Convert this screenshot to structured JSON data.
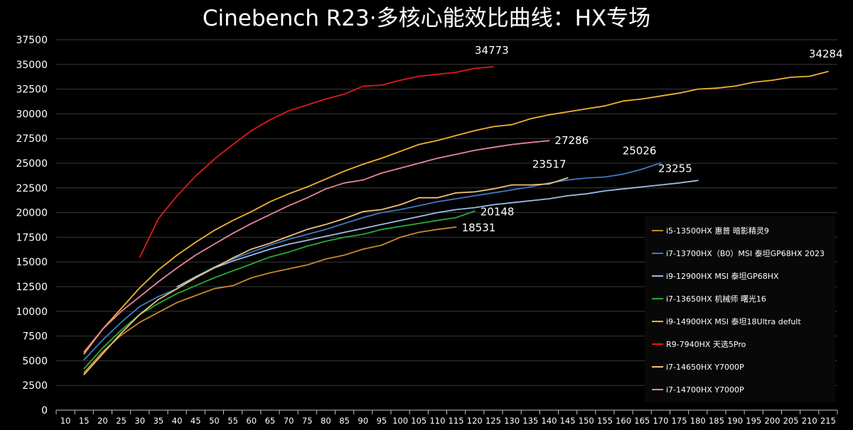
{
  "chart_data": {
    "type": "line",
    "title": "Cinebench R23·多核心能效比曲线：HX专场",
    "xlabel": "",
    "ylabel": "",
    "xlim": [
      10,
      215
    ],
    "ylim": [
      0,
      37500
    ],
    "grid": "horizontal",
    "legend_position": "right",
    "x_ticks": [
      10,
      15,
      20,
      25,
      30,
      35,
      40,
      45,
      50,
      55,
      60,
      65,
      70,
      75,
      80,
      85,
      90,
      95,
      100,
      105,
      110,
      115,
      120,
      125,
      130,
      135,
      140,
      145,
      150,
      155,
      160,
      165,
      170,
      175,
      180,
      185,
      190,
      195,
      200,
      205,
      210,
      215
    ],
    "y_ticks": [
      0,
      2500,
      5000,
      7500,
      10000,
      12500,
      15000,
      17500,
      20000,
      22500,
      25000,
      27500,
      30000,
      32500,
      35000,
      37500
    ],
    "series": [
      {
        "name": "i5-13500HX 惠普 暗影精灵9",
        "color": "#c58a2e",
        "x": [
          15,
          20,
          25,
          30,
          35,
          40,
          45,
          50,
          55,
          60,
          65,
          70,
          75,
          80,
          85,
          90,
          95,
          100,
          105,
          110,
          115
        ],
        "y": [
          3800,
          5900,
          7600,
          8900,
          9900,
          10900,
          11600,
          12300,
          12600,
          13400,
          13900,
          14300,
          14700,
          15300,
          15700,
          16300,
          16700,
          17500,
          18000,
          18300,
          18531
        ],
        "end_label": "18531"
      },
      {
        "name": "i7-13700HX（B0）MSI 泰坦GP68HX 2023",
        "color": "#3f78c4",
        "x": [
          15,
          20,
          25,
          30,
          35,
          40,
          45,
          50,
          55,
          60,
          65,
          70,
          75,
          80,
          85,
          90,
          95,
          100,
          105,
          110,
          115,
          120,
          125,
          130,
          135,
          140,
          145,
          150,
          155,
          160,
          165,
          170
        ],
        "y": [
          5100,
          7100,
          8900,
          10500,
          11500,
          12300,
          13500,
          14500,
          15300,
          16000,
          16700,
          17300,
          17800,
          18300,
          18900,
          19500,
          20000,
          20300,
          20700,
          21100,
          21400,
          21700,
          22000,
          22300,
          22600,
          23000,
          23300,
          23500,
          23600,
          23900,
          24400,
          25026
        ],
        "end_label": "25026"
      },
      {
        "name": "i9-12900HX MSI 泰坦GP68HX",
        "color": "#9dbde6",
        "x": [
          40,
          45,
          50,
          55,
          60,
          65,
          70,
          75,
          80,
          85,
          90,
          95,
          100,
          105,
          110,
          115,
          120,
          125,
          130,
          135,
          140,
          145,
          150,
          155,
          160,
          165,
          170,
          175,
          180
        ],
        "y": [
          12500,
          13500,
          14400,
          15100,
          15700,
          16300,
          16800,
          17200,
          17600,
          18000,
          18400,
          18800,
          19200,
          19600,
          20000,
          20300,
          20500,
          20800,
          21000,
          21200,
          21400,
          21700,
          21900,
          22200,
          22400,
          22600,
          22800,
          23000,
          23255
        ],
        "end_label": "23255"
      },
      {
        "name": "i7-13650HX 机械师 曙光16",
        "color": "#29a83a",
        "x": [
          15,
          20,
          25,
          30,
          35,
          40,
          45,
          50,
          55,
          60,
          65,
          70,
          75,
          80,
          85,
          90,
          95,
          100,
          105,
          110,
          115,
          120
        ],
        "y": [
          4200,
          6300,
          8100,
          9700,
          10800,
          11800,
          12600,
          13400,
          14100,
          14800,
          15500,
          16000,
          16600,
          17100,
          17500,
          17800,
          18300,
          18600,
          18900,
          19200,
          19500,
          20148
        ],
        "end_label": "20148"
      },
      {
        "name": "i9-14900HX MSI 泰坦18Ultra defult",
        "color": "#f2b233",
        "x": [
          15,
          20,
          25,
          30,
          35,
          40,
          45,
          50,
          55,
          60,
          65,
          70,
          75,
          80,
          85,
          90,
          95,
          100,
          105,
          110,
          115,
          120,
          125,
          130,
          135,
          140,
          145,
          150,
          155,
          160,
          165,
          170,
          175,
          180,
          185,
          190,
          195,
          200,
          205,
          210,
          215
        ],
        "y": [
          5700,
          8200,
          10300,
          12400,
          14200,
          15700,
          17000,
          18200,
          19200,
          20100,
          21100,
          21900,
          22600,
          23400,
          24200,
          24900,
          25500,
          26200,
          26900,
          27300,
          27800,
          28300,
          28700,
          28900,
          29500,
          29900,
          30200,
          30500,
          30800,
          31300,
          31500,
          31800,
          32100,
          32500,
          32600,
          32800,
          33200,
          33400,
          33700,
          33800,
          34284
        ],
        "end_label": "34284"
      },
      {
        "name": "R9-7940HX 天选5Pro",
        "color": "#e0191b",
        "x": [
          30,
          35,
          40,
          45,
          50,
          55,
          60,
          65,
          70,
          75,
          80,
          85,
          90,
          95,
          100,
          105,
          110,
          115,
          120,
          125
        ],
        "y": [
          15500,
          19400,
          21700,
          23700,
          25400,
          26900,
          28300,
          29400,
          30300,
          30900,
          31500,
          32000,
          32800,
          32900,
          33400,
          33800,
          34000,
          34200,
          34600,
          34773
        ],
        "end_label": "34773"
      },
      {
        "name": "i7-14650HX Y7000P",
        "color": "#f1c078",
        "x": [
          15,
          20,
          25,
          30,
          35,
          40,
          45,
          50,
          55,
          60,
          65,
          70,
          75,
          80,
          85,
          90,
          95,
          100,
          105,
          110,
          115,
          120,
          125,
          130,
          135,
          140,
          145
        ],
        "y": [
          3600,
          5700,
          7800,
          9700,
          11200,
          12300,
          13400,
          14400,
          15400,
          16300,
          16900,
          17600,
          18300,
          18800,
          19400,
          20100,
          20300,
          20800,
          21500,
          21500,
          22000,
          22100,
          22400,
          22800,
          22800,
          22900,
          23517
        ],
        "end_label": "23517"
      },
      {
        "name": "i7-14700HX Y7000P",
        "color": "#e9869a",
        "x": [
          15,
          20,
          25,
          30,
          35,
          40,
          45,
          50,
          55,
          60,
          65,
          70,
          75,
          80,
          85,
          90,
          95,
          100,
          105,
          110,
          115,
          120,
          125,
          130,
          135,
          140
        ],
        "y": [
          5900,
          8200,
          10000,
          11500,
          13000,
          14400,
          15700,
          16800,
          17900,
          18900,
          19800,
          20700,
          21500,
          22400,
          23000,
          23300,
          24000,
          24500,
          25000,
          25500,
          25900,
          26300,
          26600,
          26900,
          27100,
          27286
        ],
        "end_label": "27286"
      }
    ]
  }
}
